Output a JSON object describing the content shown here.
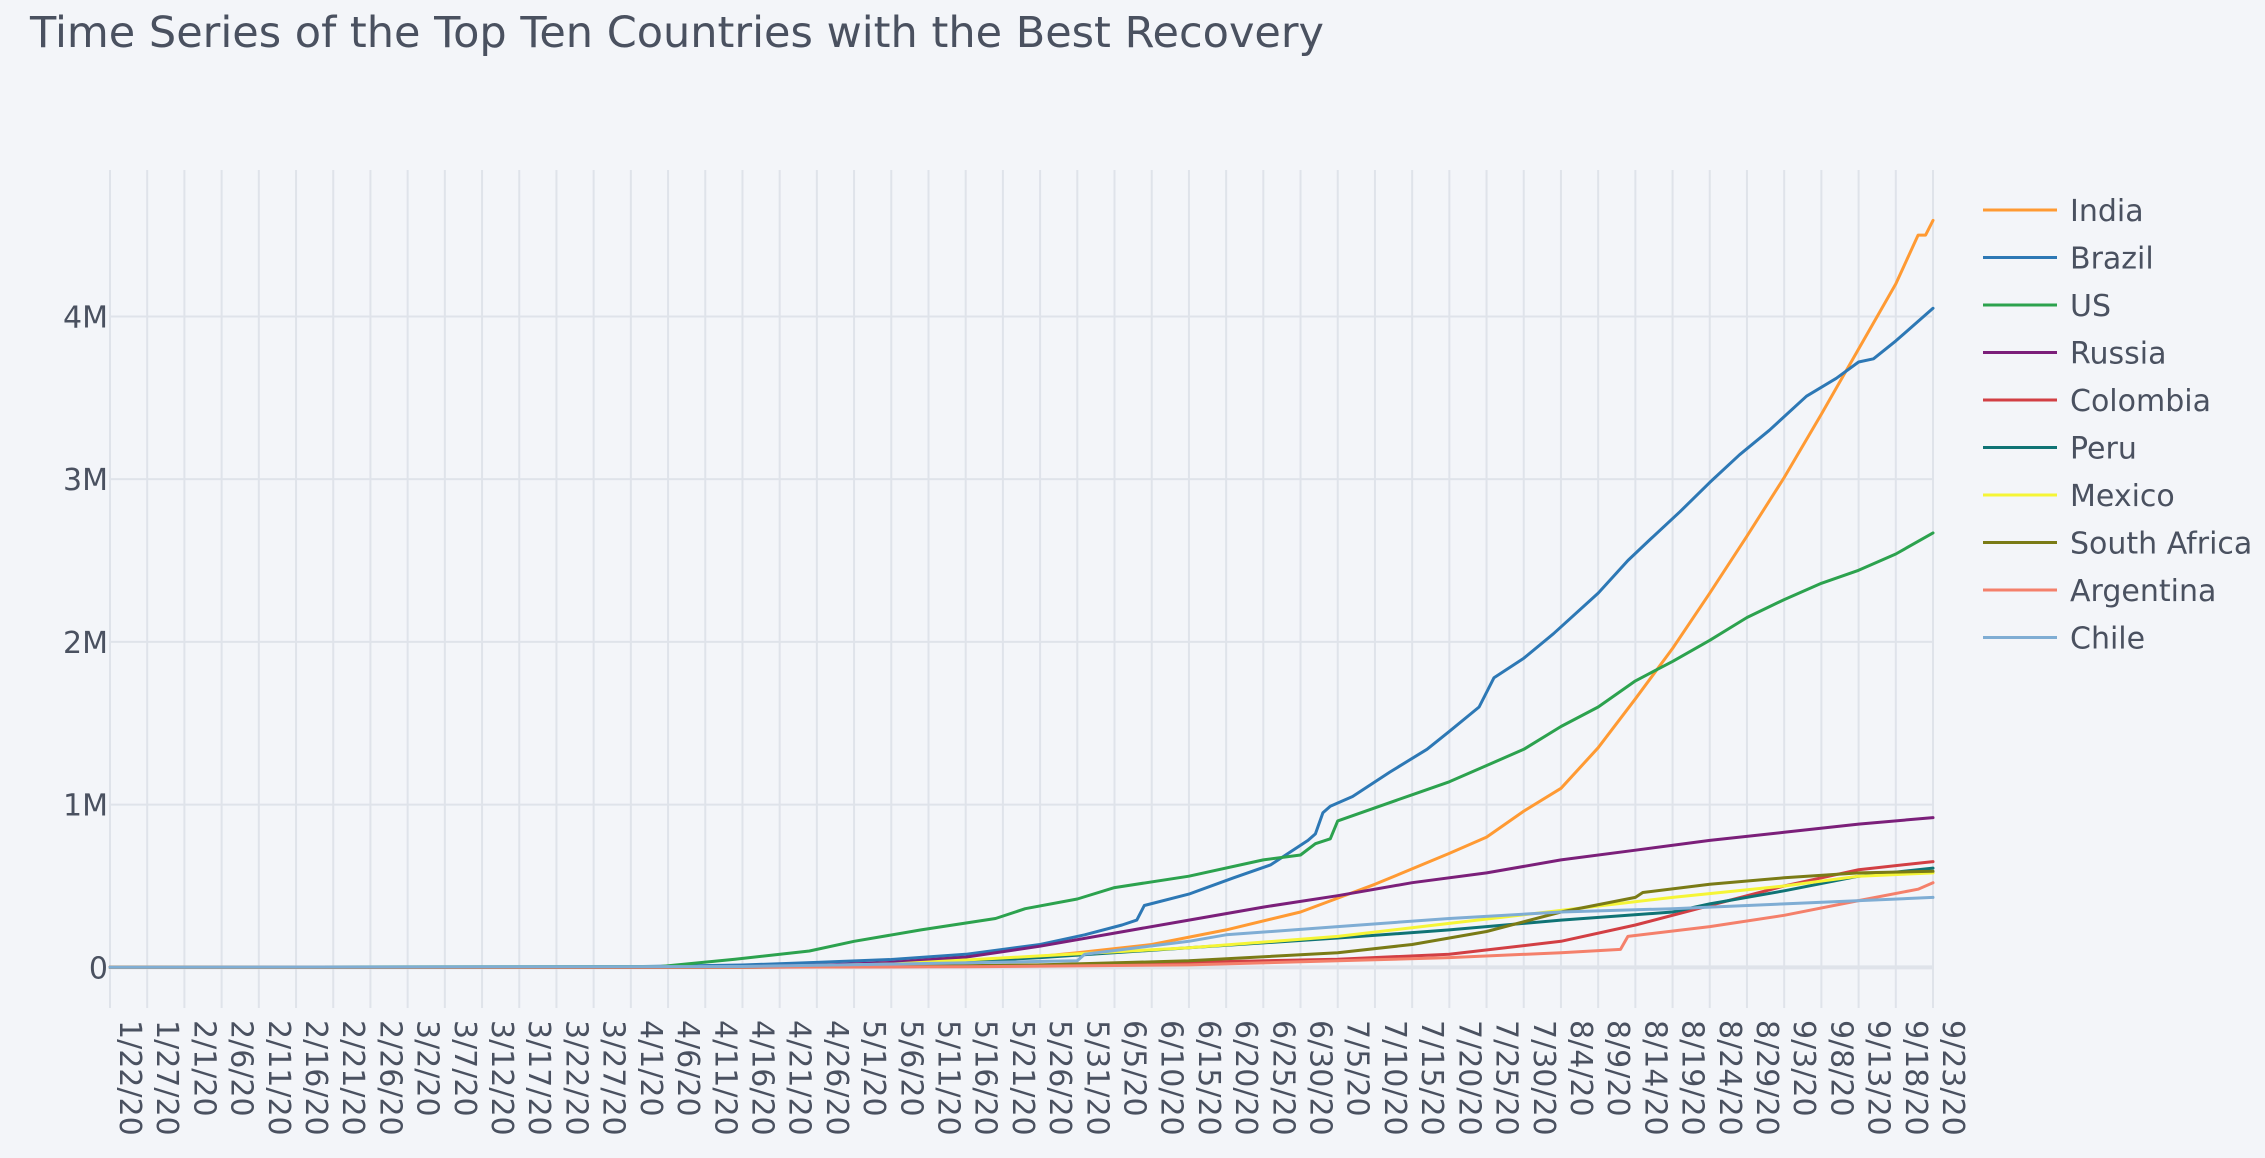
{
  "chart_data": {
    "type": "line",
    "title": "Time Series of the Top Ten Countries with the Best Recovery",
    "xlabel": "",
    "ylabel": "",
    "x_start": "2020-01-22",
    "x_end": "2020-09-23",
    "x_tick_labels": [
      "1/22/20",
      "1/27/20",
      "2/1/20",
      "2/6/20",
      "2/11/20",
      "2/16/20",
      "2/21/20",
      "2/26/20",
      "3/2/20",
      "3/7/20",
      "3/12/20",
      "3/17/20",
      "3/22/20",
      "3/27/20",
      "4/1/20",
      "4/6/20",
      "4/11/20",
      "4/16/20",
      "4/21/20",
      "4/26/20",
      "5/1/20",
      "5/6/20",
      "5/11/20",
      "5/16/20",
      "5/21/20",
      "5/26/20",
      "5/31/20",
      "6/5/20",
      "6/10/20",
      "6/15/20",
      "6/20/20",
      "6/25/20",
      "6/30/20",
      "7/5/20",
      "7/10/20",
      "7/15/20",
      "7/20/20",
      "7/25/20",
      "7/30/20",
      "8/4/20",
      "8/9/20",
      "8/14/20",
      "8/19/20",
      "8/24/20",
      "8/29/20",
      "9/3/20",
      "9/8/20",
      "9/13/20",
      "9/18/20",
      "9/23/20"
    ],
    "y_ticks": [
      0,
      1000000,
      2000000,
      3000000,
      4000000
    ],
    "y_tick_labels": [
      "0",
      "1M",
      "2M",
      "3M",
      "4M"
    ],
    "ylim": [
      -250000,
      4900000
    ],
    "grid": true,
    "legend_position": "right",
    "series": [
      {
        "name": "India",
        "color": "#ff9a33",
        "points": [
          [
            "1/22/20",
            0
          ],
          [
            "3/31/20",
            0
          ],
          [
            "4/20/20",
            3000
          ],
          [
            "5/1/20",
            9000
          ],
          [
            "5/11/20",
            20000
          ],
          [
            "5/21/20",
            45000
          ],
          [
            "5/31/20",
            90000
          ],
          [
            "6/10/20",
            140000
          ],
          [
            "6/20/20",
            230000
          ],
          [
            "6/30/20",
            340000
          ],
          [
            "7/10/20",
            510000
          ],
          [
            "7/20/20",
            700000
          ],
          [
            "7/25/20",
            800000
          ],
          [
            "7/30/20",
            960000
          ],
          [
            "8/4/20",
            1100000
          ],
          [
            "8/9/20",
            1350000
          ],
          [
            "8/14/20",
            1650000
          ],
          [
            "8/19/20",
            1960000
          ],
          [
            "8/24/20",
            2300000
          ],
          [
            "8/29/20",
            2650000
          ],
          [
            "9/3/20",
            3010000
          ],
          [
            "9/8/20",
            3400000
          ],
          [
            "9/13/20",
            3800000
          ],
          [
            "9/18/20",
            4200000
          ],
          [
            "9/21/20",
            4500000
          ],
          [
            "9/22/20",
            4500000
          ],
          [
            "9/23/20",
            4590000
          ]
        ]
      },
      {
        "name": "Brazil",
        "color": "#2d78b5",
        "points": [
          [
            "1/22/20",
            0
          ],
          [
            "3/26/20",
            0
          ],
          [
            "4/16/20",
            14000
          ],
          [
            "4/26/20",
            30000
          ],
          [
            "5/6/20",
            48000
          ],
          [
            "5/16/20",
            80000
          ],
          [
            "5/26/20",
            140000
          ],
          [
            "6/1/20",
            200000
          ],
          [
            "6/6/20",
            260000
          ],
          [
            "6/8/20",
            290000
          ],
          [
            "6/9/20",
            380000
          ],
          [
            "6/15/20",
            450000
          ],
          [
            "6/21/20",
            550000
          ],
          [
            "6/26/20",
            630000
          ],
          [
            "7/1/20",
            780000
          ],
          [
            "7/2/20",
            820000
          ],
          [
            "7/3/20",
            950000
          ],
          [
            "7/4/20",
            990000
          ],
          [
            "7/7/20",
            1050000
          ],
          [
            "7/12/20",
            1200000
          ],
          [
            "7/17/20",
            1340000
          ],
          [
            "7/20/20",
            1450000
          ],
          [
            "7/24/20",
            1600000
          ],
          [
            "7/26/20",
            1780000
          ],
          [
            "7/30/20",
            1900000
          ],
          [
            "8/3/20",
            2050000
          ],
          [
            "8/9/20",
            2300000
          ],
          [
            "8/13/20",
            2500000
          ],
          [
            "8/16/20",
            2630000
          ],
          [
            "8/20/20",
            2800000
          ],
          [
            "8/24/20",
            2980000
          ],
          [
            "8/28/20",
            3150000
          ],
          [
            "9/1/20",
            3300000
          ],
          [
            "9/6/20",
            3510000
          ],
          [
            "9/10/20",
            3620000
          ],
          [
            "9/13/20",
            3720000
          ],
          [
            "9/15/20",
            3740000
          ],
          [
            "9/18/20",
            3850000
          ],
          [
            "9/23/20",
            4050000
          ]
        ]
      },
      {
        "name": "US",
        "color": "#2ca24e",
        "points": [
          [
            "1/22/20",
            0
          ],
          [
            "4/5/20",
            5000
          ],
          [
            "4/15/20",
            50000
          ],
          [
            "4/25/20",
            100000
          ],
          [
            "5/1/20",
            160000
          ],
          [
            "5/10/20",
            230000
          ],
          [
            "5/20/20",
            300000
          ],
          [
            "5/24/20",
            360000
          ],
          [
            "5/31/20",
            420000
          ],
          [
            "6/5/20",
            490000
          ],
          [
            "6/15/20",
            560000
          ],
          [
            "6/25/20",
            660000
          ],
          [
            "6/30/20",
            690000
          ],
          [
            "7/2/20",
            760000
          ],
          [
            "7/4/20",
            790000
          ],
          [
            "7/5/20",
            900000
          ],
          [
            "7/15/20",
            1060000
          ],
          [
            "7/20/20",
            1140000
          ],
          [
            "7/30/20",
            1340000
          ],
          [
            "8/4/20",
            1480000
          ],
          [
            "8/9/20",
            1600000
          ],
          [
            "8/14/20",
            1760000
          ],
          [
            "8/19/20",
            1880000
          ],
          [
            "8/24/20",
            2010000
          ],
          [
            "8/29/20",
            2150000
          ],
          [
            "9/3/20",
            2260000
          ],
          [
            "9/8/20",
            2360000
          ],
          [
            "9/13/20",
            2440000
          ],
          [
            "9/18/20",
            2540000
          ],
          [
            "9/23/20",
            2670000
          ]
        ]
      },
      {
        "name": "Russia",
        "color": "#7b1f7a",
        "points": [
          [
            "1/22/20",
            0
          ],
          [
            "4/6/20",
            1000
          ],
          [
            "4/16/20",
            4000
          ],
          [
            "4/26/20",
            13000
          ],
          [
            "5/6/20",
            30000
          ],
          [
            "5/16/20",
            63000
          ],
          [
            "5/26/20",
            130000
          ],
          [
            "6/5/20",
            210000
          ],
          [
            "6/15/20",
            290000
          ],
          [
            "6/25/20",
            370000
          ],
          [
            "7/5/20",
            440000
          ],
          [
            "7/15/20",
            520000
          ],
          [
            "7/25/20",
            580000
          ],
          [
            "8/4/20",
            660000
          ],
          [
            "8/14/20",
            720000
          ],
          [
            "8/24/20",
            780000
          ],
          [
            "9/3/20",
            830000
          ],
          [
            "9/13/20",
            880000
          ],
          [
            "9/23/20",
            920000
          ]
        ]
      },
      {
        "name": "Colombia",
        "color": "#d23f44",
        "points": [
          [
            "1/22/20",
            0
          ],
          [
            "4/16/20",
            500
          ],
          [
            "5/6/20",
            3000
          ],
          [
            "5/26/20",
            10000
          ],
          [
            "6/15/20",
            30000
          ],
          [
            "7/5/20",
            50000
          ],
          [
            "7/20/20",
            80000
          ],
          [
            "8/4/20",
            160000
          ],
          [
            "8/14/20",
            260000
          ],
          [
            "8/24/20",
            380000
          ],
          [
            "9/3/20",
            500000
          ],
          [
            "9/13/20",
            600000
          ],
          [
            "9/23/20",
            650000
          ]
        ]
      },
      {
        "name": "Peru",
        "color": "#0f7375",
        "points": [
          [
            "1/22/20",
            0
          ],
          [
            "4/16/20",
            1000
          ],
          [
            "5/6/20",
            10000
          ],
          [
            "5/26/20",
            60000
          ],
          [
            "6/15/20",
            120000
          ],
          [
            "7/5/20",
            180000
          ],
          [
            "7/20/20",
            230000
          ],
          [
            "8/4/20",
            290000
          ],
          [
            "8/19/20",
            340000
          ],
          [
            "8/24/20",
            390000
          ],
          [
            "9/3/20",
            470000
          ],
          [
            "9/13/20",
            560000
          ],
          [
            "9/23/20",
            610000
          ]
        ]
      },
      {
        "name": "Mexico",
        "color": "#f5f536",
        "points": [
          [
            "1/22/20",
            0
          ],
          [
            "4/16/20",
            2000
          ],
          [
            "5/6/20",
            20000
          ],
          [
            "5/26/20",
            70000
          ],
          [
            "6/15/20",
            120000
          ],
          [
            "7/5/20",
            190000
          ],
          [
            "7/20/20",
            270000
          ],
          [
            "8/4/20",
            350000
          ],
          [
            "8/19/20",
            430000
          ],
          [
            "9/3/20",
            500000
          ],
          [
            "9/13/20",
            560000
          ],
          [
            "9/23/20",
            580000
          ]
        ]
      },
      {
        "name": "South Africa",
        "color": "#7a7b16",
        "points": [
          [
            "1/22/20",
            0
          ],
          [
            "4/16/20",
            1000
          ],
          [
            "5/6/20",
            5000
          ],
          [
            "5/26/20",
            15000
          ],
          [
            "6/15/20",
            40000
          ],
          [
            "7/5/20",
            90000
          ],
          [
            "7/15/20",
            140000
          ],
          [
            "7/25/20",
            220000
          ],
          [
            "8/4/20",
            340000
          ],
          [
            "8/14/20",
            430000
          ],
          [
            "8/15/20",
            460000
          ],
          [
            "8/24/20",
            510000
          ],
          [
            "9/3/20",
            550000
          ],
          [
            "9/13/20",
            580000
          ],
          [
            "9/23/20",
            590000
          ]
        ]
      },
      {
        "name": "Argentina",
        "color": "#f4806b",
        "points": [
          [
            "1/22/20",
            0
          ],
          [
            "4/16/20",
            500
          ],
          [
            "5/16/20",
            3000
          ],
          [
            "6/15/20",
            15000
          ],
          [
            "7/5/20",
            40000
          ],
          [
            "7/20/20",
            60000
          ],
          [
            "8/4/20",
            90000
          ],
          [
            "8/12/20",
            110000
          ],
          [
            "8/13/20",
            190000
          ],
          [
            "8/24/20",
            250000
          ],
          [
            "9/3/20",
            320000
          ],
          [
            "9/13/20",
            410000
          ],
          [
            "9/21/20",
            480000
          ],
          [
            "9/23/20",
            520000
          ]
        ]
      },
      {
        "name": "Chile",
        "color": "#7fadd4",
        "points": [
          [
            "1/22/20",
            0
          ],
          [
            "4/16/20",
            5000
          ],
          [
            "5/6/20",
            20000
          ],
          [
            "5/31/20",
            40000
          ],
          [
            "6/1/20",
            80000
          ],
          [
            "6/15/20",
            160000
          ],
          [
            "6/20/20",
            200000
          ],
          [
            "7/5/20",
            250000
          ],
          [
            "7/20/20",
            300000
          ],
          [
            "8/4/20",
            340000
          ],
          [
            "8/19/20",
            360000
          ],
          [
            "9/3/20",
            390000
          ],
          [
            "9/23/20",
            430000
          ]
        ]
      }
    ]
  }
}
